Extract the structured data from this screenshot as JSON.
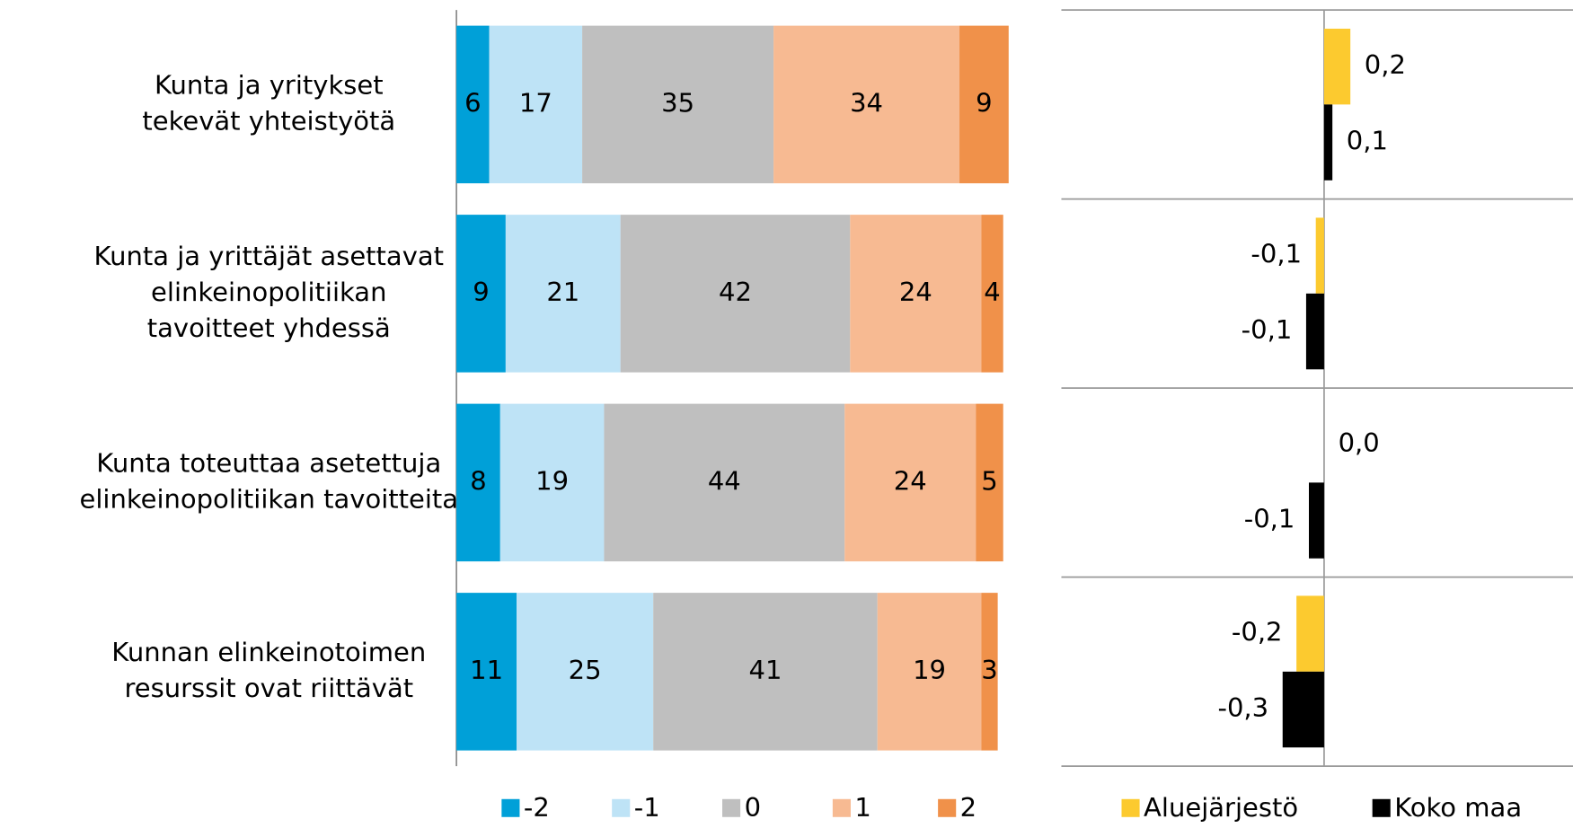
{
  "chart_data": [
    {
      "type": "bar",
      "orientation": "horizontal",
      "stacked": true,
      "categories": [
        [
          "Kunta ja yritykset",
          "tekevät yhteistyötä"
        ],
        [
          "Kunta ja yrittäjät asettavat",
          "elinkeinopolitiikan",
          "tavoitteet yhdessä"
        ],
        [
          "Kunta toteuttaa asetettuja",
          "elinkeinopolitiikan tavoitteita"
        ],
        [
          "Kunnan elinkeinotoimen",
          "resurssit ovat riittävät"
        ]
      ],
      "series": [
        {
          "name": "-2",
          "color": "#00a0d8",
          "values": [
            6,
            9,
            8,
            11
          ]
        },
        {
          "name": "-1",
          "color": "#bee3f6",
          "values": [
            17,
            21,
            19,
            25
          ]
        },
        {
          "name": "0",
          "color": "#bfbfbf",
          "values": [
            35,
            42,
            44,
            41
          ]
        },
        {
          "name": "1",
          "color": "#f7ba92",
          "values": [
            34,
            24,
            24,
            19
          ]
        },
        {
          "name": "2",
          "color": "#f0914a",
          "values": [
            9,
            4,
            5,
            3
          ]
        }
      ],
      "xlim": [
        0,
        100
      ]
    },
    {
      "type": "bar",
      "orientation": "horizontal",
      "stacked": false,
      "series": [
        {
          "name": "Aluejärjestö",
          "color": "#fcca2f",
          "values": [
            0.19,
            -0.06,
            0.0,
            -0.2
          ],
          "value_labels": [
            "0,2",
            "-0,1",
            "0,0",
            "-0,2"
          ]
        },
        {
          "name": "Koko maa",
          "color": "#000000",
          "values": [
            0.06,
            -0.13,
            -0.11,
            -0.3
          ],
          "value_labels": [
            "0,1",
            "-0,1",
            "-0,1",
            "-0,3"
          ]
        }
      ],
      "xlim": [
        -1.9,
        1.8
      ]
    }
  ]
}
